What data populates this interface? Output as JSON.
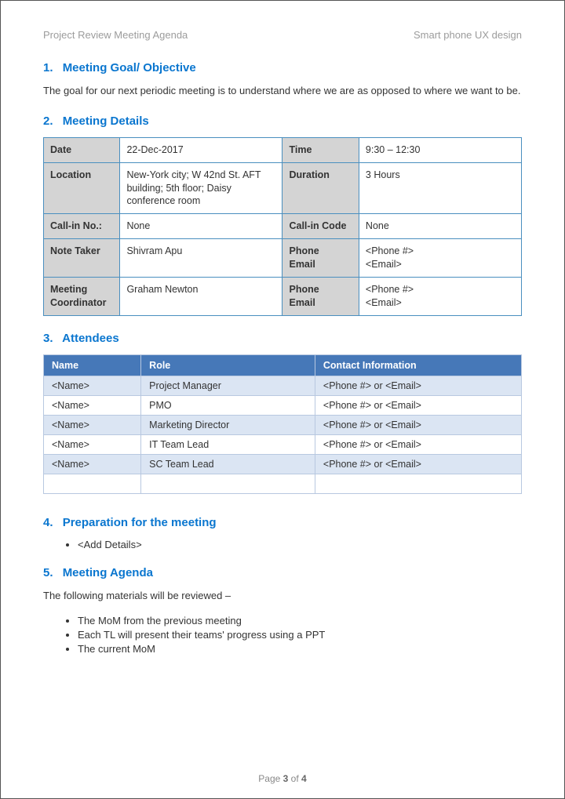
{
  "header": {
    "left": "Project Review Meeting Agenda",
    "right": "Smart phone UX design"
  },
  "sections": {
    "s1": {
      "num": "1.",
      "title": "Meeting Goal/ Objective",
      "body": "The goal for our next periodic meeting is to understand where we are as opposed to where we want to be."
    },
    "s2": {
      "num": "2.",
      "title": "Meeting Details"
    },
    "s3": {
      "num": "3.",
      "title": "Attendees"
    },
    "s4": {
      "num": "4.",
      "title": "Preparation for the meeting"
    },
    "s5": {
      "num": "5.",
      "title": "Meeting Agenda",
      "body": "The following materials will be reviewed –"
    }
  },
  "details": {
    "rows": [
      {
        "l1": "Date",
        "v1": "22-Dec-2017",
        "l2": "Time",
        "v2": "9:30 – 12:30"
      },
      {
        "l1": "Location",
        "v1": "New-York city; W 42nd St. AFT building; 5th floor; Daisy conference room",
        "l2": "Duration",
        "v2": "3 Hours"
      },
      {
        "l1": "Call-in No.:",
        "v1": "None",
        "l2": "Call-in Code",
        "v2": "None"
      },
      {
        "l1": "Note Taker",
        "v1": "Shivram Apu",
        "l2": "Phone\nEmail",
        "v2": "<Phone #>\n<Email>"
      },
      {
        "l1": "Meeting Coordinator",
        "v1": "Graham Newton",
        "l2": "Phone\nEmail",
        "v2": "<Phone #>\n<Email>"
      }
    ]
  },
  "attendees": {
    "columns": [
      "Name",
      "Role",
      "Contact Information"
    ],
    "rows": [
      [
        "<Name>",
        "Project Manager",
        "<Phone #> or <Email>"
      ],
      [
        "<Name>",
        "PMO",
        "<Phone #> or <Email>"
      ],
      [
        "<Name>",
        "Marketing Director",
        "<Phone #> or <Email>"
      ],
      [
        "<Name>",
        "IT Team Lead",
        "<Phone #> or <Email>"
      ],
      [
        "<Name>",
        "SC Team Lead",
        "<Phone #> or <Email>"
      ],
      [
        "",
        "",
        ""
      ]
    ],
    "colors": {
      "header_bg": "#4678b8",
      "row_odd": "#dbe5f3",
      "row_even": "#ffffff",
      "border": "#b8c8e0"
    }
  },
  "preparation": {
    "items": [
      "<Add Details>"
    ]
  },
  "agenda_items": [
    "The MoM from the previous meeting",
    "Each TL will present their teams' progress using a PPT",
    "The current MoM"
  ],
  "footer": {
    "prefix": "Page ",
    "page": "3",
    "of": " of ",
    "total": "4"
  }
}
